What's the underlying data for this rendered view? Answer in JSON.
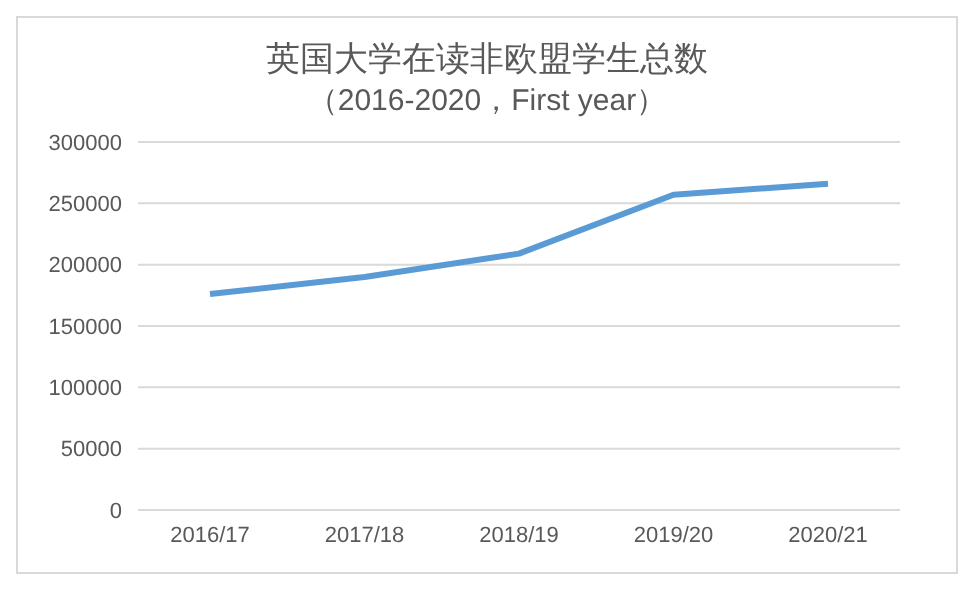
{
  "chart_data": {
    "type": "line",
    "title": "英国大学在读非欧盟学生总数",
    "subtitle": "（2016-2020，First year）",
    "categories": [
      "2016/17",
      "2017/18",
      "2018/19",
      "2019/20",
      "2020/21"
    ],
    "series": [
      {
        "color": "#5b9bd5",
        "values": [
          176000,
          190000,
          209000,
          257000,
          266000
        ]
      }
    ],
    "ylim": [
      0,
      300000
    ],
    "yticks": [
      0,
      50000,
      100000,
      150000,
      200000,
      250000,
      300000
    ],
    "grid": "y",
    "legend": false,
    "marker": "none",
    "line_style": "solid"
  }
}
